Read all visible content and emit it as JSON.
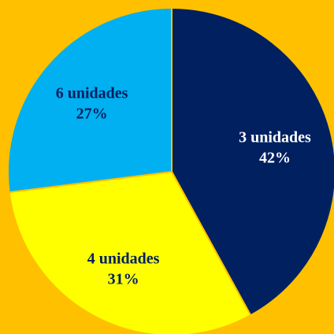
{
  "chart_data": {
    "type": "pie",
    "categories": [
      "3 unidades",
      "4 unidades",
      "6 unidades"
    ],
    "values": [
      42,
      31,
      27
    ],
    "value_labels": [
      "42%",
      "31%",
      "27%"
    ],
    "colors": [
      "#002060",
      "#FFFF00",
      "#00B0F0"
    ],
    "label_colors": [
      "#FFFFFF",
      "#002060",
      "#002060"
    ],
    "background": "#FFC000"
  }
}
